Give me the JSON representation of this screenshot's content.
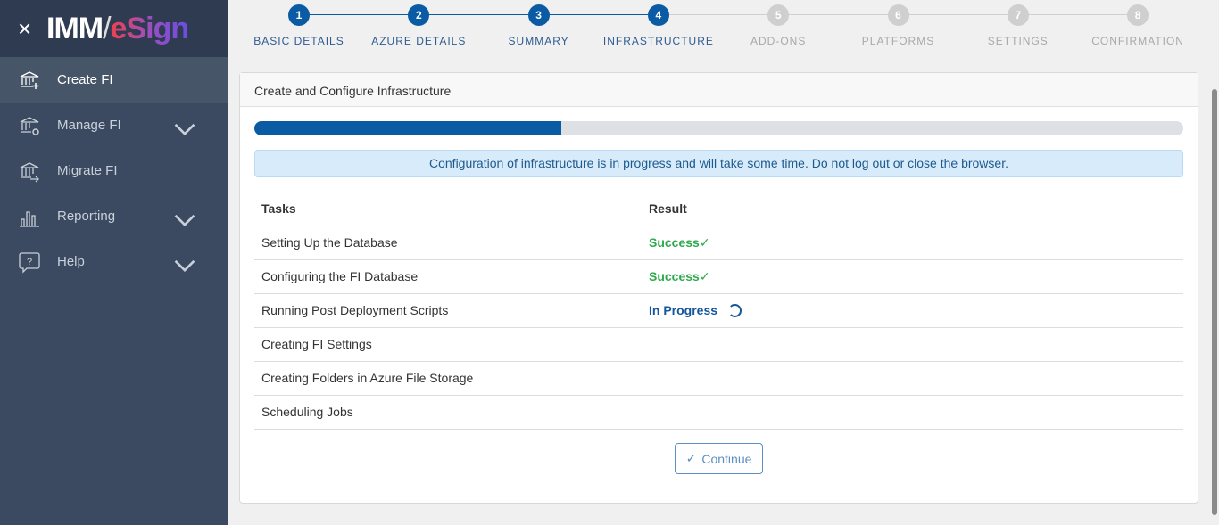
{
  "app": {
    "logo_imm": "IMM",
    "logo_esign": "eSign"
  },
  "sidebar": {
    "items": [
      {
        "label": "Create FI",
        "icon": "bank-plus-icon",
        "active": true,
        "expandable": false
      },
      {
        "label": "Manage FI",
        "icon": "bank-gear-icon",
        "expandable": true
      },
      {
        "label": "Migrate FI",
        "icon": "bank-arrow-icon",
        "expandable": false
      },
      {
        "label": "Reporting",
        "icon": "bar-chart-icon",
        "expandable": true
      },
      {
        "label": "Help",
        "icon": "help-bubble-icon",
        "expandable": true
      }
    ]
  },
  "steps": [
    {
      "num": "1",
      "label": "BASIC DETAILS",
      "done": true
    },
    {
      "num": "2",
      "label": "AZURE DETAILS",
      "done": true
    },
    {
      "num": "3",
      "label": "SUMMARY",
      "done": true
    },
    {
      "num": "4",
      "label": "INFRASTRUCTURE",
      "done": true
    },
    {
      "num": "5",
      "label": "ADD-ONS",
      "done": false
    },
    {
      "num": "6",
      "label": "PLATFORMS",
      "done": false
    },
    {
      "num": "7",
      "label": "SETTINGS",
      "done": false
    },
    {
      "num": "8",
      "label": "CONFIRMATION",
      "done": false
    }
  ],
  "card": {
    "title": "Create and Configure Infrastructure",
    "progress_percent": 33,
    "alert": "Configuration of infrastructure is in progress and will take some time. Do not log out or close the browser.",
    "columns": [
      "Tasks",
      "Result"
    ],
    "rows": [
      {
        "task": "Setting Up the Database",
        "result": "Success",
        "status": "success"
      },
      {
        "task": "Configuring the FI Database",
        "result": "Success",
        "status": "success"
      },
      {
        "task": "Running Post Deployment Scripts",
        "result": "In Progress",
        "status": "progress"
      },
      {
        "task": "Creating FI Settings",
        "result": "",
        "status": ""
      },
      {
        "task": "Creating Folders in Azure File Storage",
        "result": "",
        "status": ""
      },
      {
        "task": "Scheduling Jobs",
        "result": "",
        "status": ""
      }
    ],
    "continue_label": "Continue"
  },
  "colors": {
    "primary": "#0a5aa4",
    "success": "#2eaa4e",
    "sidebar": "#3b4a60"
  }
}
